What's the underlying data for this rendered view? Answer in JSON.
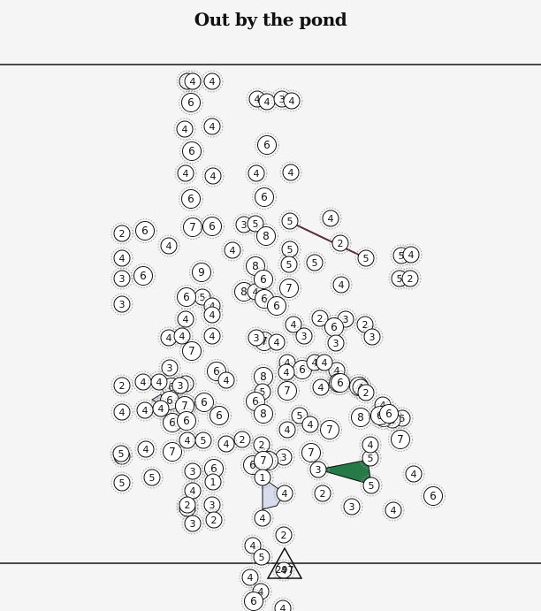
{
  "title": "Out by the pond",
  "goal_counter": "297",
  "colors": {
    "background": "#f6f5f6",
    "line": "#111111",
    "ring": "#9a9a9a",
    "green_island": "#267a48",
    "lavender_island": "#d9dcec",
    "bridge": "#5a2b3a"
  },
  "nodes": [
    {
      "v": "4"
    },
    {
      "v": "4"
    },
    {
      "v": "4"
    },
    {
      "v": "6"
    },
    {
      "v": "4"
    },
    {
      "v": "4"
    },
    {
      "v": "3"
    },
    {
      "v": "4"
    },
    {
      "v": "4"
    },
    {
      "v": "4"
    },
    {
      "v": "6"
    },
    {
      "v": "6"
    },
    {
      "v": "4"
    },
    {
      "v": "4"
    },
    {
      "v": "4"
    },
    {
      "v": "4"
    },
    {
      "v": "6"
    },
    {
      "v": "6"
    },
    {
      "v": "7"
    },
    {
      "v": "6"
    },
    {
      "v": "3"
    },
    {
      "v": "5"
    },
    {
      "v": "8"
    },
    {
      "v": "5"
    },
    {
      "v": "4"
    },
    {
      "v": "2"
    },
    {
      "v": "6"
    },
    {
      "v": "4"
    },
    {
      "v": "4"
    },
    {
      "v": "5"
    },
    {
      "v": "2"
    },
    {
      "v": "5"
    },
    {
      "v": "5"
    },
    {
      "v": "4"
    },
    {
      "v": "4"
    },
    {
      "v": "3"
    },
    {
      "v": "6"
    },
    {
      "v": "9"
    },
    {
      "v": "8"
    },
    {
      "v": "5"
    },
    {
      "v": "5"
    },
    {
      "v": "5"
    },
    {
      "v": "2"
    },
    {
      "v": "4"
    },
    {
      "v": "8"
    },
    {
      "v": "4"
    },
    {
      "v": "6"
    },
    {
      "v": "7"
    },
    {
      "v": "6"
    },
    {
      "v": "6"
    },
    {
      "v": "3"
    },
    {
      "v": "5"
    },
    {
      "v": "4"
    },
    {
      "v": "6"
    },
    {
      "v": "4"
    },
    {
      "v": "4"
    },
    {
      "v": "2"
    },
    {
      "v": "3"
    },
    {
      "v": "6"
    },
    {
      "v": "2"
    },
    {
      "v": "4"
    },
    {
      "v": "3"
    },
    {
      "v": "3"
    },
    {
      "v": "3"
    },
    {
      "v": "4"
    },
    {
      "v": "4"
    },
    {
      "v": "4"
    },
    {
      "v": "7"
    },
    {
      "v": "7"
    },
    {
      "v": "4"
    },
    {
      "v": "3"
    },
    {
      "v": "3"
    },
    {
      "v": "4"
    },
    {
      "v": "6"
    },
    {
      "v": "4"
    },
    {
      "v": "6"
    },
    {
      "v": "4"
    },
    {
      "v": "4"
    },
    {
      "v": "5"
    },
    {
      "v": "6"
    },
    {
      "v": "8"
    },
    {
      "v": "4"
    },
    {
      "v": "6"
    },
    {
      "v": "3"
    },
    {
      "v": "4"
    },
    {
      "v": "2"
    },
    {
      "v": "4"
    },
    {
      "v": "4"
    },
    {
      "v": "6"
    },
    {
      "v": "6"
    },
    {
      "v": "6"
    },
    {
      "v": "5"
    },
    {
      "v": "7"
    },
    {
      "v": "6"
    },
    {
      "v": "4"
    },
    {
      "v": "6"
    },
    {
      "v": "4"
    },
    {
      "v": "6"
    },
    {
      "v": "4"
    },
    {
      "v": "5"
    },
    {
      "v": "4"
    },
    {
      "v": "4"
    },
    {
      "v": "2"
    },
    {
      "v": "7"
    },
    {
      "v": "6"
    },
    {
      "v": "8"
    },
    {
      "v": "6"
    },
    {
      "v": "5"
    },
    {
      "v": "4"
    },
    {
      "v": "7"
    },
    {
      "v": "8"
    },
    {
      "v": "4"
    },
    {
      "v": "4"
    },
    {
      "v": "5"
    },
    {
      "v": "3"
    },
    {
      "v": "6"
    },
    {
      "v": "6"
    },
    {
      "v": "6"
    },
    {
      "v": "7"
    },
    {
      "v": "5"
    },
    {
      "v": "4"
    },
    {
      "v": "7"
    },
    {
      "v": "4"
    },
    {
      "v": "5"
    },
    {
      "v": "2"
    },
    {
      "v": "4"
    },
    {
      "v": "2"
    },
    {
      "v": "3"
    },
    {
      "v": "7"
    },
    {
      "v": "6"
    },
    {
      "v": "6"
    },
    {
      "v": "5"
    },
    {
      "v": "7"
    },
    {
      "v": "3"
    },
    {
      "v": "5"
    },
    {
      "v": "5"
    },
    {
      "v": "4"
    },
    {
      "v": "5"
    },
    {
      "v": "5"
    },
    {
      "v": "3"
    },
    {
      "v": "6"
    },
    {
      "v": "1"
    },
    {
      "v": "1"
    },
    {
      "v": "4"
    },
    {
      "v": "3"
    },
    {
      "v": "2"
    },
    {
      "v": "4"
    },
    {
      "v": "4"
    },
    {
      "v": "6"
    },
    {
      "v": "4"
    },
    {
      "v": "4"
    },
    {
      "v": "4"
    },
    {
      "v": "3"
    },
    {
      "v": "2"
    },
    {
      "v": "3"
    },
    {
      "v": "2"
    },
    {
      "v": "4"
    },
    {
      "v": "2"
    },
    {
      "v": "5"
    },
    {
      "v": "4"
    },
    {
      "v": "4"
    },
    {
      "v": "4"
    },
    {
      "v": "6"
    },
    {
      "v": "4"
    },
    {
      "v": "6"
    },
    {
      "v": "3"
    },
    {
      "v": "2"
    }
  ]
}
